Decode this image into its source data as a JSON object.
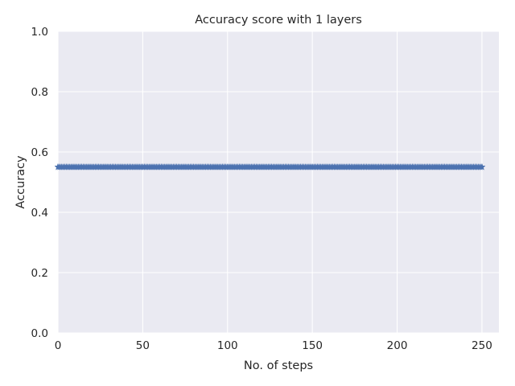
{
  "chart_data": {
    "type": "line",
    "title": "Accuracy score with 1 layers",
    "xlabel": "No. of steps",
    "ylabel": "Accuracy",
    "xlim": [
      0,
      260
    ],
    "ylim": [
      0.0,
      1.0
    ],
    "xticks": [
      0,
      50,
      100,
      150,
      200,
      250
    ],
    "xtick_labels": [
      "0",
      "50",
      "100",
      "150",
      "200",
      "250"
    ],
    "yticks": [
      0.0,
      0.2,
      0.4,
      0.6,
      0.8,
      1.0
    ],
    "ytick_labels": [
      "0.0",
      "0.2",
      "0.4",
      "0.6",
      "0.8",
      "1.0"
    ],
    "grid": true,
    "series": [
      {
        "marker": "star",
        "color": "#4c72b0",
        "x_start": 0,
        "x_end": 250,
        "x_step": 1,
        "value": 0.55
      }
    ]
  }
}
